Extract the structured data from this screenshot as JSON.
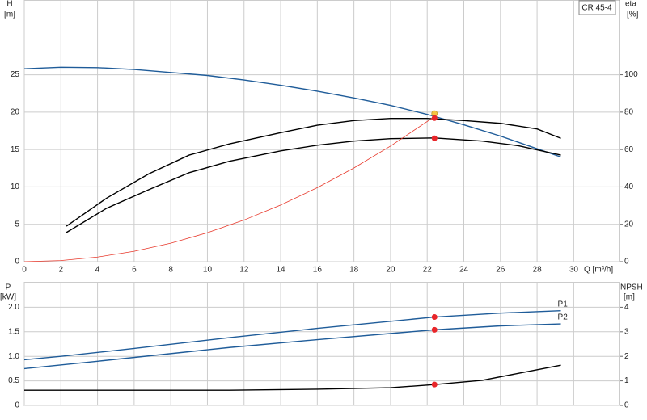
{
  "chart_data": [
    {
      "type": "line",
      "title": "CR 45-4",
      "ylabel": "H",
      "yunit": "[m]",
      "y2label": "eta",
      "y2unit": "[%]",
      "xlabel": "Q [m³/h]",
      "xlim": [
        0,
        32.5
      ],
      "xticks": [
        0,
        2,
        4,
        6,
        8,
        10,
        12,
        14,
        16,
        18,
        20,
        22,
        24,
        26,
        28,
        30
      ],
      "ylim": [
        0,
        35
      ],
      "yticks": [
        0,
        5,
        10,
        15,
        20,
        25
      ],
      "y2lim": [
        0,
        140
      ],
      "y2ticks": [
        0,
        20,
        40,
        60,
        80,
        100
      ],
      "grid": true,
      "series": [
        {
          "color": "#1f5c99",
          "x": [
            0,
            2,
            4,
            6,
            8,
            10,
            12,
            14,
            16,
            18,
            20,
            22,
            24,
            26,
            28,
            29.3
          ],
          "values": [
            25.8,
            26.0,
            25.95,
            25.7,
            25.3,
            24.9,
            24.3,
            23.6,
            22.8,
            21.9,
            20.9,
            19.7,
            18.3,
            16.8,
            15.1,
            14.0
          ]
        },
        {
          "color": "#000000",
          "axis": "y2",
          "x": [
            2.3,
            4.5,
            6.8,
            9,
            11.2,
            14,
            16,
            18,
            20,
            22,
            24,
            26,
            28,
            29.3
          ],
          "values": [
            19,
            34,
            47,
            57,
            63,
            69,
            73,
            75.5,
            76.6,
            76.6,
            75.5,
            74,
            71,
            66
          ]
        },
        {
          "color": "#000000",
          "axis": "y2",
          "x": [
            2.3,
            4.5,
            6.8,
            9,
            11.2,
            14,
            16,
            18,
            20,
            22.4,
            25,
            27,
            29.3
          ],
          "values": [
            15.6,
            28.6,
            38.5,
            47.6,
            53.7,
            59.3,
            62.3,
            64.5,
            65.8,
            66.2,
            64.5,
            62,
            57
          ]
        },
        {
          "color": "#e8392c",
          "x": [
            0,
            2,
            4,
            6,
            8,
            10,
            12,
            14,
            16,
            18,
            20,
            22.4
          ],
          "values": [
            0,
            0.15,
            0.62,
            1.39,
            2.47,
            3.87,
            5.57,
            7.58,
            9.9,
            12.53,
            15.47,
            19.4
          ]
        }
      ],
      "markers": [
        {
          "x": 22.4,
          "value": 19.8,
          "color": "#f5c542"
        },
        {
          "x": 22.4,
          "value": 19.2,
          "color": "#e8262a"
        },
        {
          "x": 22.4,
          "value": 66,
          "color": "#e8262a",
          "axis": "y2"
        }
      ]
    },
    {
      "type": "line",
      "ylabel": "P",
      "yunit": "[kW]",
      "y2label": "NPSH",
      "y2unit": "[m]",
      "xlim": [
        0,
        32.5
      ],
      "ylim": [
        0,
        2.5
      ],
      "yticks": [
        0,
        0.5,
        {
          "value": 1,
          "label": "1.0"
        },
        1.5,
        {
          "value": 2,
          "label": "2.0"
        }
      ],
      "y2lim": [
        0,
        5
      ],
      "y2ticks": [
        0,
        1,
        2,
        3,
        4
      ],
      "grid": true,
      "series": [
        {
          "name": "P1",
          "color": "#1f5c99",
          "x": [
            0,
            2,
            6,
            11.2,
            16,
            22.4,
            26,
            29.3
          ],
          "values": [
            0.93,
            1.0,
            1.16,
            1.38,
            1.57,
            1.8,
            1.88,
            1.93
          ]
        },
        {
          "name": "P2",
          "color": "#1f5c99",
          "x": [
            0,
            4,
            11.2,
            16,
            22.4,
            26,
            29.3
          ],
          "values": [
            0.75,
            0.9,
            1.18,
            1.34,
            1.54,
            1.62,
            1.66
          ]
        },
        {
          "color": "#000000",
          "axis": "y2",
          "x": [
            0,
            11.2,
            16,
            20,
            22.4,
            25,
            27,
            29.3
          ],
          "values": [
            0.62,
            0.62,
            0.66,
            0.72,
            0.85,
            1.02,
            1.31,
            1.64
          ]
        }
      ],
      "markers": [
        {
          "x": 22.4,
          "value": 1.8,
          "color": "#e8262a"
        },
        {
          "x": 22.4,
          "value": 1.54,
          "color": "#e8262a"
        },
        {
          "x": 22.4,
          "value": 0.85,
          "color": "#e8262a",
          "axis": "y2"
        }
      ]
    }
  ]
}
